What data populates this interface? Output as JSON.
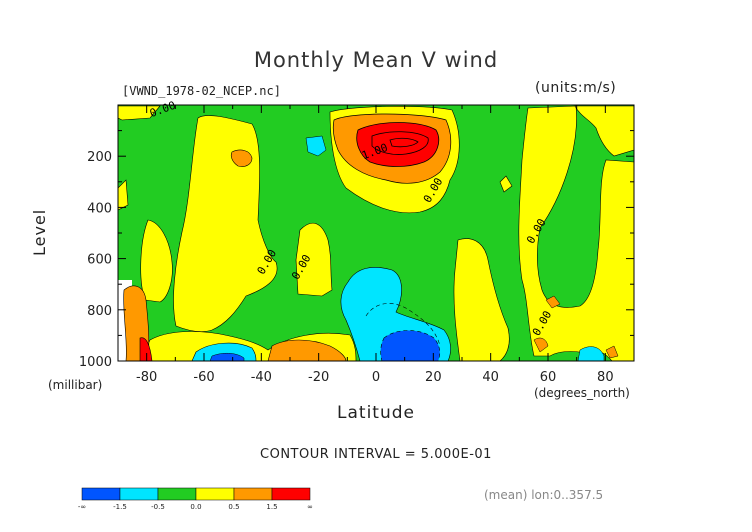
{
  "title": "Monthly Mean V wind",
  "file_label": "[VWND_1978-02_NCEP.nc]",
  "units_label": "(units:m/s)",
  "contour_note": "CONTOUR INTERVAL = 5.000E-01",
  "mean_note": "(mean) lon:0..357.5",
  "chart_data": {
    "type": "heatmap",
    "title": "Monthly Mean V wind",
    "xlabel": "Latitude",
    "xunit": "(degrees_north)",
    "ylabel": "Level",
    "yunit": "(millibar)",
    "xlim": [
      -90,
      90
    ],
    "ylim": [
      1000,
      0
    ],
    "x_ticks": [
      -80,
      -60,
      -40,
      -20,
      0,
      20,
      40,
      60,
      80
    ],
    "x_tick_labels": [
      "-80",
      "-60",
      "-40",
      "-20",
      "0",
      "20",
      "40",
      "60",
      "80"
    ],
    "y_ticks": [
      200,
      400,
      600,
      800,
      1000
    ],
    "y_tick_labels": [
      "200",
      "400",
      "600",
      "800",
      "1000"
    ],
    "contour_interval": 0.5,
    "contour_labels": [
      {
        "text": "0.00",
        "x": -74,
        "y": 30
      },
      {
        "text": "1.00",
        "x": 0,
        "y": 195
      },
      {
        "text": "0.00",
        "x": 21,
        "y": 340
      },
      {
        "text": "0.00",
        "x": -37,
        "y": 620
      },
      {
        "text": "0.00",
        "x": -25,
        "y": 640
      },
      {
        "text": "0.00",
        "x": 57,
        "y": 500
      },
      {
        "text": "0.00",
        "x": 59,
        "y": 860
      }
    ],
    "colorbar": {
      "boundaries": [
        -1.5,
        -0.5,
        0.0,
        0.5,
        1.5
      ],
      "labels": [
        "-∞",
        "-1.5",
        "-0.5",
        "0.0",
        "0.5",
        "1.5",
        "∞"
      ],
      "colors": [
        "#0055ff",
        "#00e5ff",
        "#22cc22",
        "#ffff00",
        "#ff9900",
        "#ff0000"
      ]
    }
  }
}
